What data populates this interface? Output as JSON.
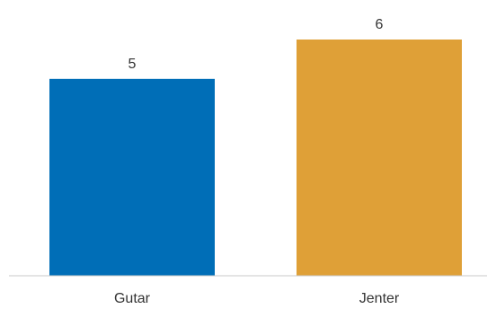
{
  "chart_data": {
    "type": "bar",
    "title": "",
    "xlabel": "",
    "ylabel": "",
    "categories": [
      "Gutar",
      "Jenter"
    ],
    "values": [
      5,
      6
    ],
    "data_labels": [
      "5",
      "6"
    ],
    "colors": [
      "#006EB7",
      "#DFA037"
    ],
    "ylim": [
      0,
      6
    ],
    "grid": false,
    "legend": "none"
  }
}
